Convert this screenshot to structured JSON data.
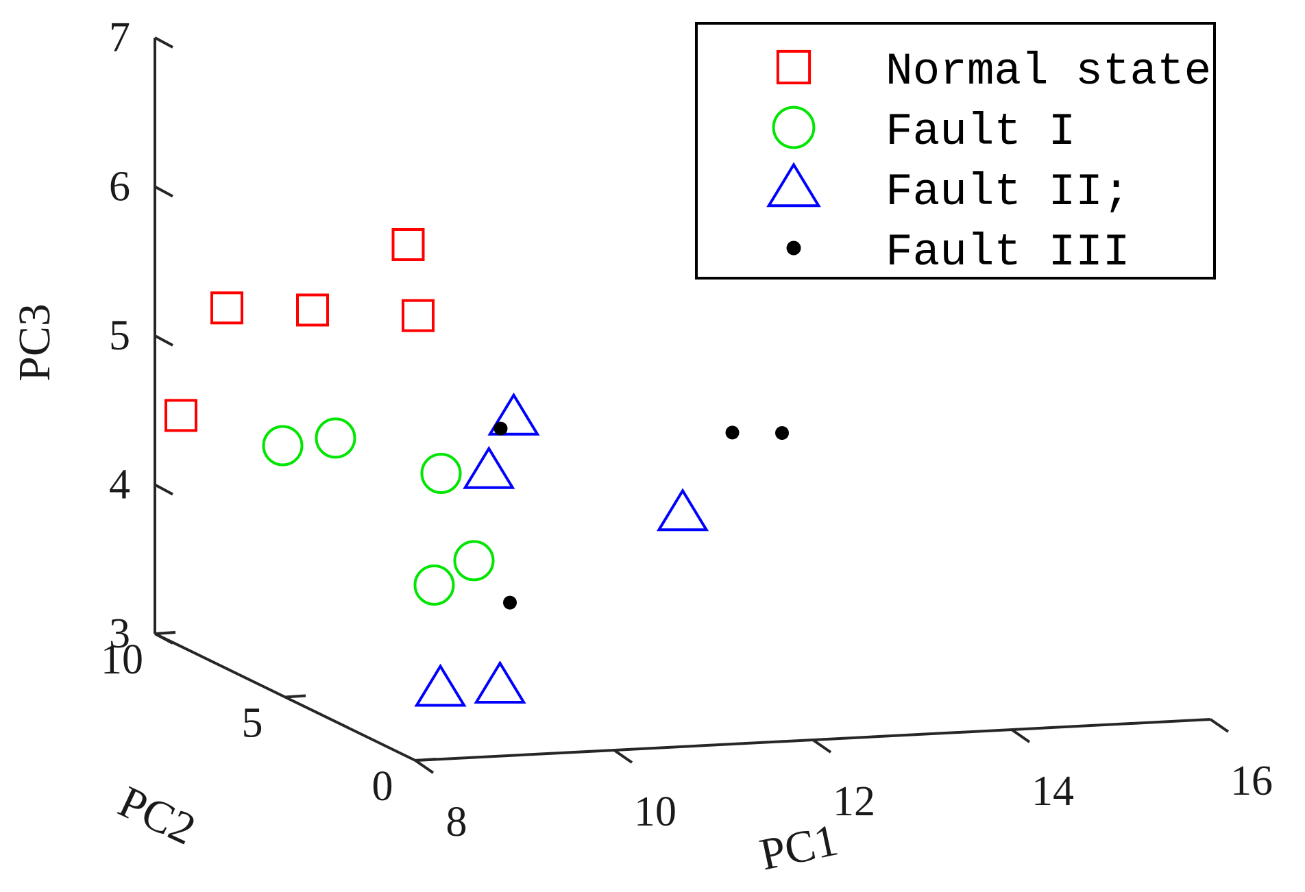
{
  "chart_data": {
    "type": "scatter3d",
    "title": "",
    "xlabel": "PC1",
    "ylabel": "PC2",
    "zlabel": "PC3",
    "xlim": [
      8,
      16
    ],
    "ylim": [
      0,
      10
    ],
    "zlim": [
      3,
      7
    ],
    "xticks": [
      "8",
      "10",
      "12",
      "14",
      "16"
    ],
    "yticks": [
      "0",
      "5",
      "10"
    ],
    "zticks": [
      "3",
      "4",
      "5",
      "6",
      "7"
    ],
    "legend_position": "top-right",
    "series": [
      {
        "name": "Normal state",
        "marker": "square",
        "color": "#ff0000",
        "points": [
          {
            "x": 9.5,
            "y": 6.0,
            "z": 5.9
          },
          {
            "x": 9.6,
            "y": 6.0,
            "z": 5.42
          },
          {
            "x": 8.8,
            "y": 7.0,
            "z": 5.4
          },
          {
            "x": 8.2,
            "y": 8.0,
            "z": 5.35
          },
          {
            "x": 8.0,
            "y": 9.0,
            "z": 4.55
          }
        ]
      },
      {
        "name": "Fault  I",
        "marker": "circle",
        "color": "#00e600",
        "points": [
          {
            "x": 8.5,
            "y": 7.0,
            "z": 4.5
          },
          {
            "x": 8.9,
            "y": 6.5,
            "z": 4.58
          },
          {
            "x": 9.7,
            "y": 5.5,
            "z": 4.4
          },
          {
            "x": 9.5,
            "y": 5.0,
            "z": 3.7
          },
          {
            "x": 9.9,
            "y": 5.0,
            "z": 3.85
          }
        ]
      },
      {
        "name": "Fault  II;",
        "marker": "triangle",
        "color": "#0000ff",
        "points": [
          {
            "x": 10.3,
            "y": 5.0,
            "z": 4.8
          },
          {
            "x": 10.05,
            "y": 5.0,
            "z": 4.45
          },
          {
            "x": 12.0,
            "y": 5.0,
            "z": 4.1
          },
          {
            "x": 9.3,
            "y": 4.0,
            "z": 3.1
          },
          {
            "x": 9.9,
            "y": 4.0,
            "z": 3.1
          }
        ]
      },
      {
        "name": "Fault  III",
        "marker": "dot",
        "color": "#000000",
        "points": [
          {
            "x": 10.3,
            "y": 5.5,
            "z": 4.68
          },
          {
            "x": 10.0,
            "y": 4.0,
            "z": 3.65
          },
          {
            "x": 12.5,
            "y": 5.0,
            "z": 4.62
          },
          {
            "x": 13.0,
            "y": 5.0,
            "z": 4.6
          }
        ]
      }
    ]
  }
}
